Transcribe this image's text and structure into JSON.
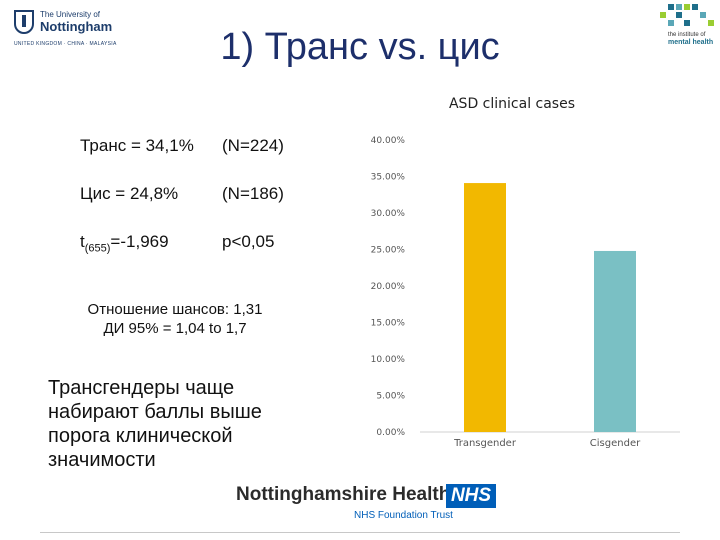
{
  "logos": {
    "university": {
      "line1": "The University of",
      "line2": "Nottingham",
      "line3": "UNITED KINGDOM · CHINA · MALAYSIA"
    },
    "institute": {
      "line1": "the institute of",
      "line2": "mental health",
      "line3": ""
    }
  },
  "slide": {
    "title": "1) Транс vs. цис",
    "stats": {
      "trans_label": "Транс = 34,1%",
      "trans_n": "(N=224)",
      "cis_label": "Цис = 24,8%",
      "cis_n": "(N=186)",
      "t_symbol": "t",
      "t_df": "(655)",
      "t_value": "=-1,969",
      "p_value": "p<0,05"
    },
    "odds_line1": "Отношение шансов: 1,31",
    "odds_line2": "ДИ 95% = 1,04 to 1,7",
    "conclusion": "Трансгендеры чаще набирают баллы выше порога клинической значимости"
  },
  "chart_data": {
    "type": "bar",
    "title": "ASD clinical cases",
    "categories": [
      "Transgender",
      "Cisgender"
    ],
    "values": [
      34.1,
      24.8
    ],
    "colors": [
      "#f2b800",
      "#7ac0c4"
    ],
    "ylim": [
      0,
      40
    ],
    "yticks": [
      0,
      5,
      10,
      15,
      20,
      25,
      30,
      35,
      40
    ],
    "ytick_labels": [
      "0.00%",
      "5.00%",
      "10.00%",
      "15.00%",
      "20.00%",
      "25.00%",
      "30.00%",
      "35.00%",
      "40.00%"
    ],
    "xlabel": "",
    "ylabel": "",
    "grid": false,
    "legend": "none"
  },
  "footer": {
    "org_name": "Nottinghamshire Healthcare",
    "nhs_badge": "NHS",
    "trust": "NHS Foundation Trust"
  }
}
